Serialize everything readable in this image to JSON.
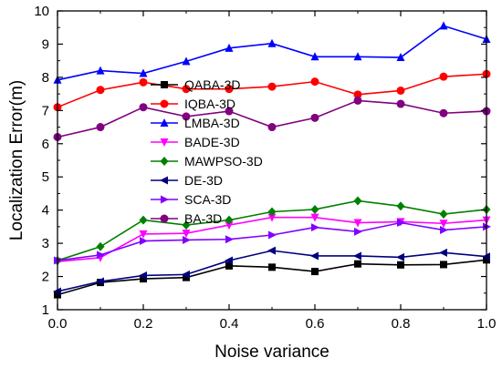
{
  "chart_data": {
    "type": "line",
    "title": "",
    "xlabel": "Noise variance",
    "ylabel": "Localization Error(m)",
    "xlim": [
      0.0,
      1.0
    ],
    "ylim": [
      1,
      10
    ],
    "x_ticks": [
      "0.0",
      "0.2",
      "0.4",
      "0.6",
      "0.8",
      "1.0"
    ],
    "y_ticks": [
      "1",
      "2",
      "3",
      "4",
      "5",
      "6",
      "7",
      "8",
      "9",
      "10"
    ],
    "grid": false,
    "legend_position": "center-left",
    "x": [
      0.0,
      0.1,
      0.2,
      0.3,
      0.4,
      0.5,
      0.6,
      0.7,
      0.8,
      0.9,
      1.0
    ],
    "series": [
      {
        "name": "QABA-3D",
        "color": "#000000",
        "marker": "square",
        "values": [
          1.45,
          1.82,
          1.93,
          1.97,
          2.32,
          2.28,
          2.15,
          2.38,
          2.35,
          2.36,
          2.5
        ]
      },
      {
        "name": "IQBA-3D",
        "color": "#ff0000",
        "marker": "circle",
        "values": [
          7.1,
          7.62,
          7.85,
          7.65,
          7.65,
          7.72,
          7.87,
          7.48,
          7.6,
          8.02,
          8.1
        ]
      },
      {
        "name": "LMBA-3D",
        "color": "#0000ff",
        "marker": "triangle-up",
        "values": [
          7.92,
          8.2,
          8.12,
          8.48,
          8.88,
          9.02,
          8.62,
          8.62,
          8.6,
          9.55,
          9.15
        ]
      },
      {
        "name": "BADE-3D",
        "color": "#ff00ff",
        "marker": "triangle-down",
        "values": [
          2.45,
          2.57,
          3.28,
          3.3,
          3.55,
          3.78,
          3.78,
          3.62,
          3.65,
          3.6,
          3.7
        ]
      },
      {
        "name": "MAWPSO-3D",
        "color": "#008000",
        "marker": "diamond",
        "values": [
          2.48,
          2.9,
          3.7,
          3.55,
          3.7,
          3.95,
          4.02,
          4.28,
          4.12,
          3.88,
          4.02
        ]
      },
      {
        "name": "DE-3D",
        "color": "#000080",
        "marker": "triangle-left",
        "values": [
          1.55,
          1.85,
          2.03,
          2.06,
          2.48,
          2.78,
          2.62,
          2.62,
          2.58,
          2.72,
          2.6
        ]
      },
      {
        "name": "SCA-3D",
        "color": "#8000ff",
        "marker": "triangle-right",
        "values": [
          2.48,
          2.65,
          3.07,
          3.1,
          3.12,
          3.25,
          3.48,
          3.35,
          3.62,
          3.4,
          3.5
        ]
      },
      {
        "name": "BA-3D",
        "color": "#800080",
        "marker": "circle",
        "values": [
          6.2,
          6.5,
          7.1,
          6.82,
          6.98,
          6.5,
          6.78,
          7.3,
          7.2,
          6.92,
          6.98
        ]
      }
    ]
  }
}
